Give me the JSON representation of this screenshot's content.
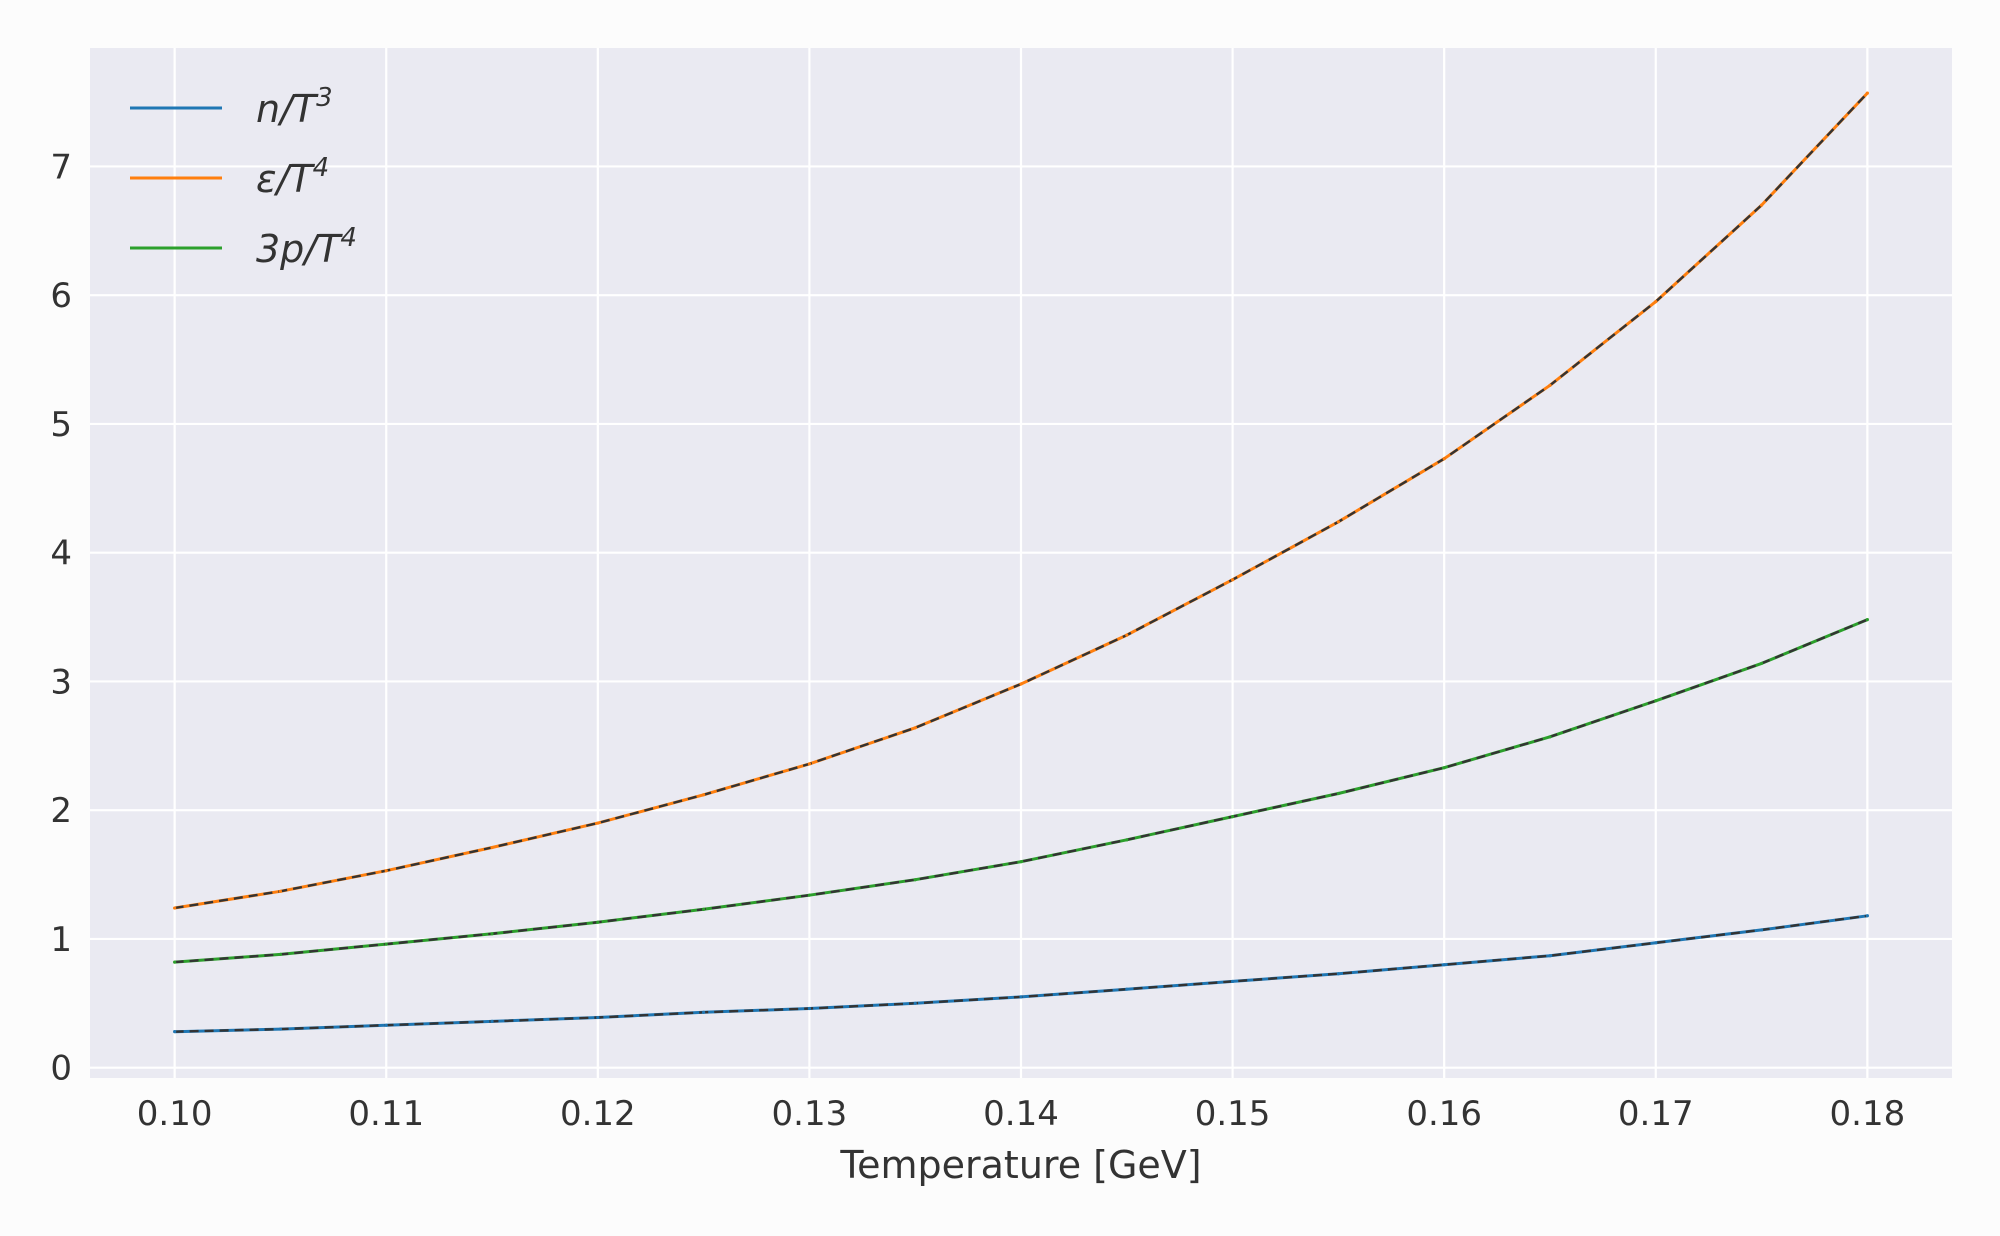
{
  "chart_data": {
    "type": "line",
    "xlabel": "Temperature [GeV]",
    "ylabel": "",
    "xlim": [
      0.096,
      0.184
    ],
    "ylim": [
      -0.08,
      7.92
    ],
    "grid": true,
    "legend_position": "top-left",
    "xticks": [
      "0.10",
      "0.11",
      "0.12",
      "0.13",
      "0.14",
      "0.15",
      "0.16",
      "0.17",
      "0.18"
    ],
    "yticks": [
      "0",
      "1",
      "2",
      "3",
      "4",
      "5",
      "6",
      "7"
    ],
    "x": [
      0.1,
      0.105,
      0.11,
      0.115,
      0.12,
      0.125,
      0.13,
      0.135,
      0.14,
      0.145,
      0.15,
      0.155,
      0.16,
      0.165,
      0.17,
      0.175,
      0.18
    ],
    "series": [
      {
        "name": "n/T^3",
        "legend_base": "n/T",
        "legend_sup": "3",
        "color": "#1f77b4",
        "values": [
          0.28,
          0.3,
          0.33,
          0.36,
          0.39,
          0.43,
          0.46,
          0.5,
          0.55,
          0.61,
          0.67,
          0.73,
          0.8,
          0.87,
          0.97,
          1.07,
          1.18
        ]
      },
      {
        "name": "ε/T^4",
        "legend_base": "ε/T",
        "legend_sup": "4",
        "color": "#ff7f0e",
        "values": [
          1.24,
          1.37,
          1.53,
          1.71,
          1.9,
          2.12,
          2.36,
          2.64,
          2.98,
          3.36,
          3.79,
          4.24,
          4.73,
          5.3,
          5.95,
          6.7,
          7.57
        ]
      },
      {
        "name": "3p/T^4",
        "legend_base": "3p/T",
        "legend_sup": "4",
        "color": "#2ca02c",
        "values": [
          0.82,
          0.88,
          0.96,
          1.04,
          1.13,
          1.23,
          1.34,
          1.46,
          1.6,
          1.77,
          1.95,
          2.13,
          2.33,
          2.57,
          2.85,
          3.14,
          3.48
        ]
      }
    ],
    "overlay": {
      "style": "dashed",
      "color": "#333333"
    }
  }
}
